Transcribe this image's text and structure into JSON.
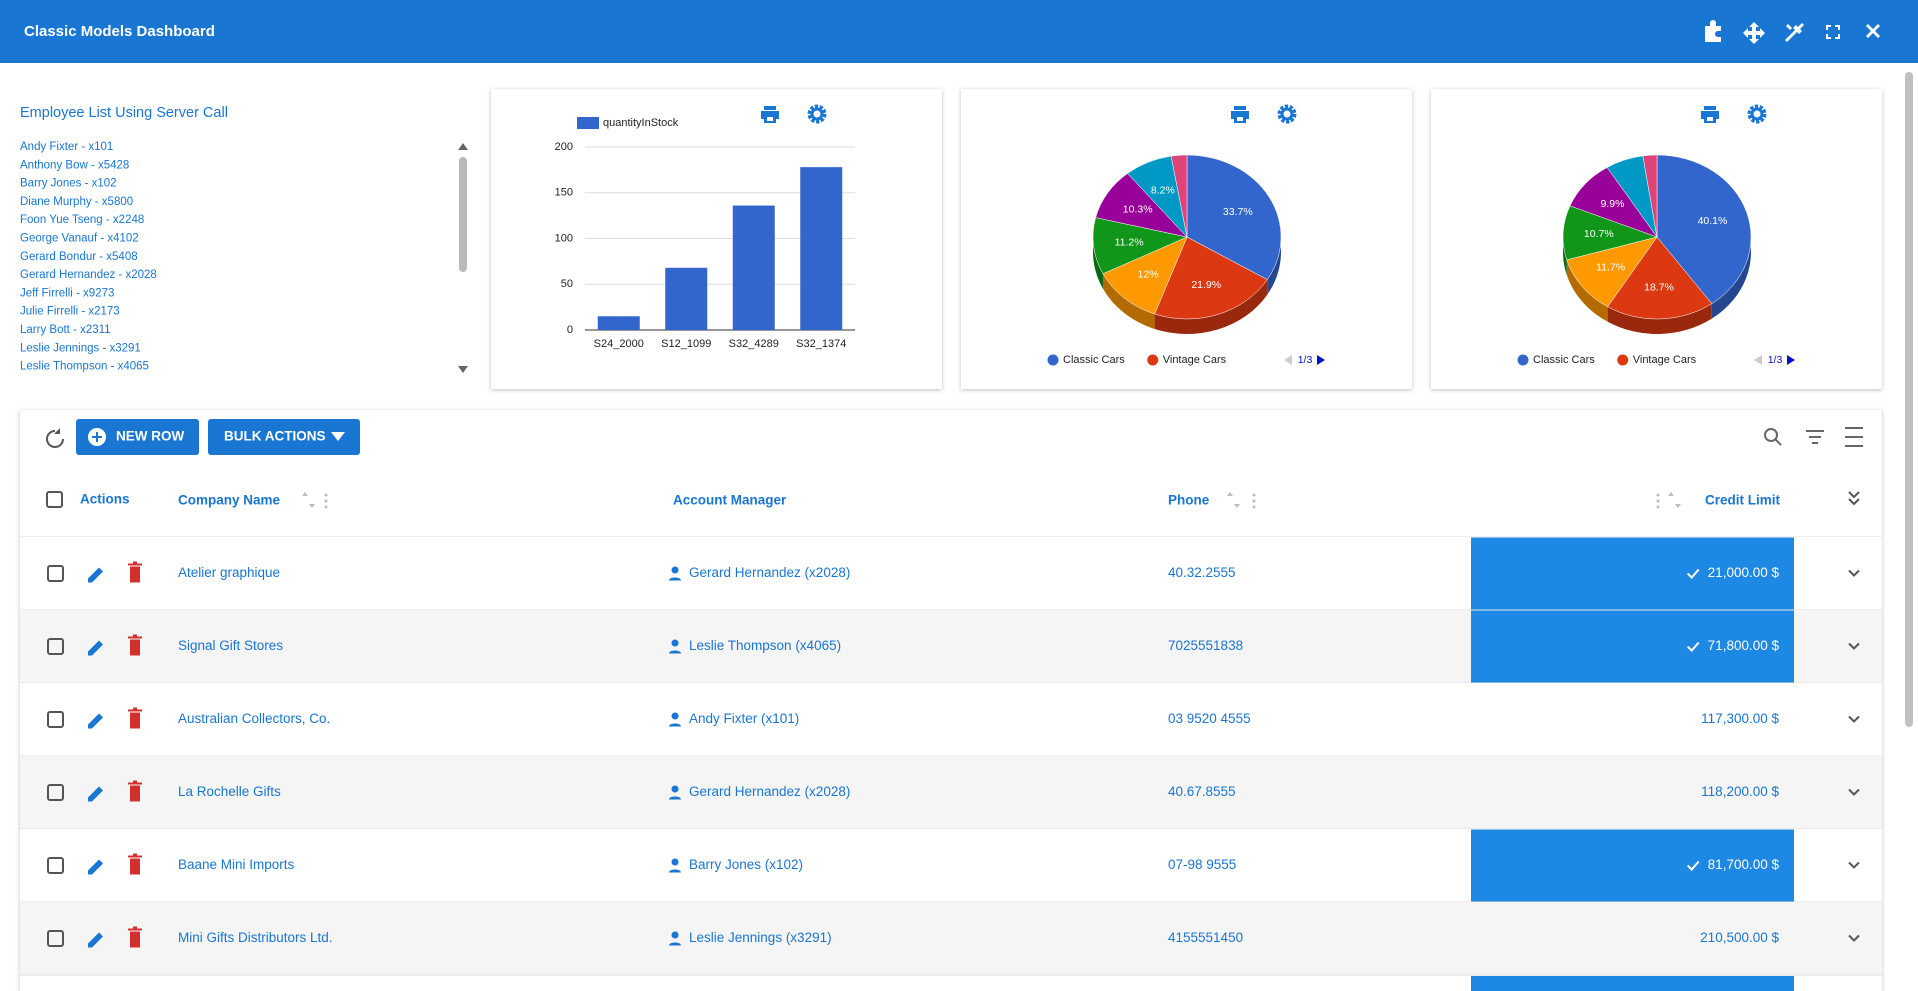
{
  "header": {
    "title": "Classic Models Dashboard"
  },
  "employees": {
    "title": "Employee List Using Server Call",
    "items": [
      "Andy Fixter - x101",
      "Anthony Bow - x5428",
      "Barry Jones - x102",
      "Diane Murphy - x5800",
      "Foon Yue Tseng - x2248",
      "George Vanauf - x4102",
      "Gerard Bondur - x5408",
      "Gerard Hernandez - x2028",
      "Jeff Firrelli - x9273",
      "Julie Firrelli - x2173",
      "Larry Bott - x2311",
      "Leslie Jennings - x3291",
      "Leslie Thompson - x4065"
    ]
  },
  "charts": [
    {
      "type": "bar",
      "series_name": "quantityInStock",
      "color": "#3366cc",
      "categories": [
        "S24_2000",
        "S12_1099",
        "S32_4289",
        "S32_1374"
      ],
      "values": [
        15,
        68,
        136,
        178
      ],
      "ylim": [
        0,
        200
      ],
      "yticks": [
        0,
        50,
        100,
        150,
        200
      ],
      "grid": true
    },
    {
      "type": "pie",
      "categories": [
        "Classic Cars",
        "Vintage Cars",
        null,
        null,
        null,
        null,
        null
      ],
      "values": [
        33.7,
        21.9,
        12,
        11.2,
        10.3,
        8.2,
        2.7
      ],
      "value_labels": [
        "33.7%",
        "21.9%",
        "12%",
        "11.2%",
        "10.3%",
        "8.2%",
        null
      ],
      "colors": [
        "#3366cc",
        "#dc3912",
        "#ff9900",
        "#109618",
        "#990099",
        "#0099c6",
        "#dd4477"
      ],
      "legend_page": "1/3"
    },
    {
      "type": "pie",
      "categories": [
        "Classic Cars",
        "Vintage Cars",
        null,
        null,
        null,
        null,
        null
      ],
      "values": [
        40.1,
        18.7,
        11.7,
        10.7,
        9.9,
        6.5,
        2.4
      ],
      "value_labels": [
        "40.1%",
        "18.7%",
        "11.7%",
        "10.7%",
        "9.9%",
        null,
        null
      ],
      "colors": [
        "#3366cc",
        "#dc3912",
        "#ff9900",
        "#109618",
        "#990099",
        "#0099c6",
        "#dd4477"
      ],
      "legend_page": "1/3"
    }
  ],
  "table": {
    "buttons": [
      "NEW ROW",
      "BULK ACTIONS"
    ],
    "columns": [
      "Actions",
      "Company Name",
      "Account Manager",
      "Phone",
      "Credit Limit"
    ],
    "rows": [
      {
        "company": "Atelier graphique",
        "manager": "Gerard Hernandez (x2028)",
        "phone": "40.32.2555",
        "credit": "21,000.00 $",
        "highlighted": true
      },
      {
        "company": "Signal Gift Stores",
        "manager": "Leslie Thompson (x4065)",
        "phone": "7025551838",
        "credit": "71,800.00 $",
        "highlighted": true
      },
      {
        "company": "Australian Collectors, Co.",
        "manager": "Andy Fixter (x101)",
        "phone": "03 9520 4555",
        "credit": "117,300.00 $",
        "highlighted": false
      },
      {
        "company": "La Rochelle Gifts",
        "manager": "Gerard Hernandez (x2028)",
        "phone": "40.67.8555",
        "credit": "118,200.00 $",
        "highlighted": false
      },
      {
        "company": "Baane Mini Imports",
        "manager": "Barry Jones (x102)",
        "phone": "07-98 9555",
        "credit": "81,700.00 $",
        "highlighted": true
      },
      {
        "company": "Mini Gifts Distributors Ltd.",
        "manager": "Leslie Jennings (x3291)",
        "phone": "4155551450",
        "credit": "210,500.00 $",
        "highlighted": false
      }
    ]
  }
}
